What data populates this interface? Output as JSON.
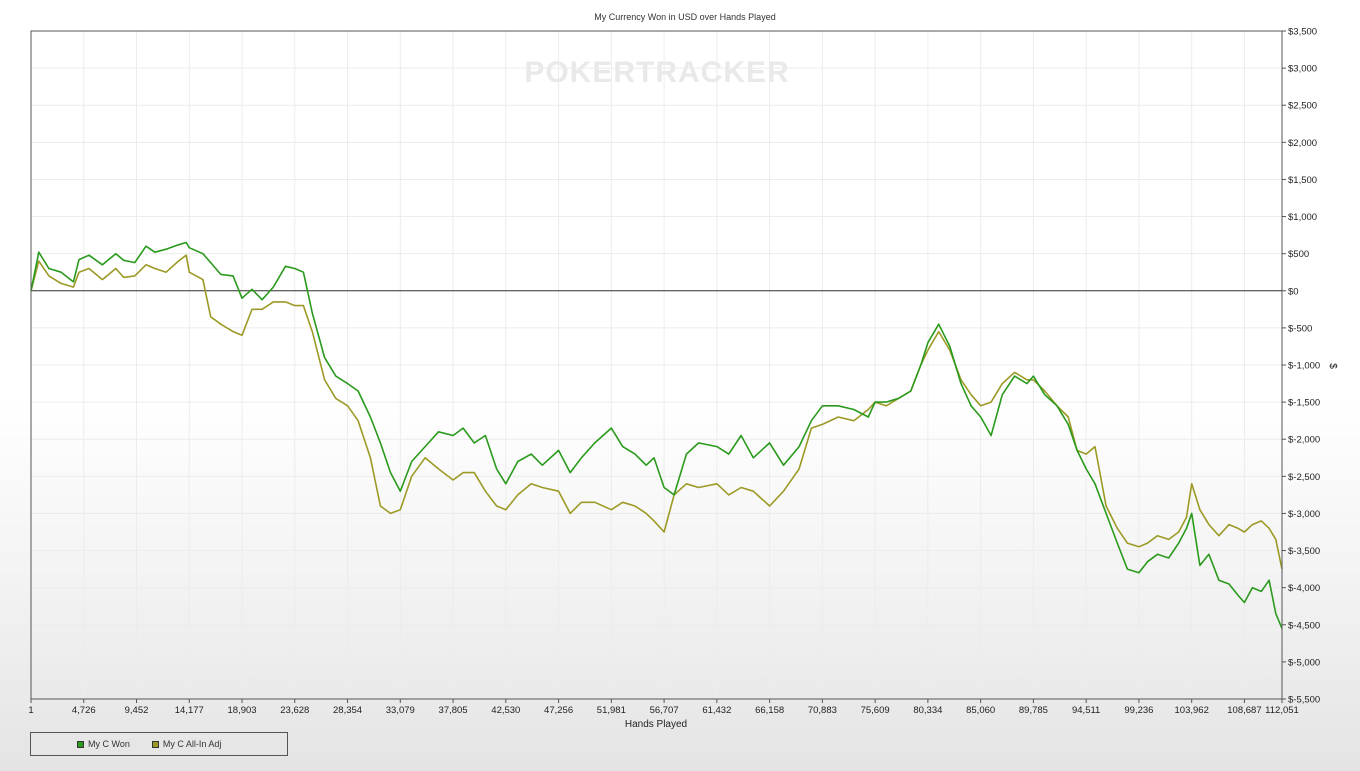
{
  "chart_data": {
    "type": "line",
    "title": "My Currency Won in USD over Hands Played",
    "watermark": "POKERTRACKER",
    "xlabel": "Hands Played",
    "ylabel": "$",
    "xlim": [
      1,
      112051
    ],
    "ylim": [
      -5500,
      3500
    ],
    "x_ticks": [
      1,
      4726,
      9452,
      14177,
      18903,
      23628,
      28354,
      33079,
      37805,
      42530,
      47256,
      51981,
      56707,
      61432,
      66158,
      70883,
      75609,
      80334,
      85060,
      89785,
      94511,
      99236,
      103962,
      108687,
      112051
    ],
    "x_tick_labels": [
      "1",
      "4,726",
      "9,452",
      "14,177",
      "18,903",
      "23,628",
      "28,354",
      "33,079",
      "37,805",
      "42,530",
      "47,256",
      "51,981",
      "56,707",
      "61,432",
      "66,158",
      "70,883",
      "75,609",
      "80,334",
      "85,060",
      "89,785",
      "94,511",
      "99,236",
      "103,962",
      "108,687",
      "112,051"
    ],
    "y_ticks": [
      3500,
      3000,
      2500,
      2000,
      1500,
      1000,
      500,
      0,
      -500,
      -1000,
      -1500,
      -2000,
      -2500,
      -3000,
      -3500,
      -4000,
      -4500,
      -5000,
      -5500
    ],
    "y_tick_labels": [
      "$3,500",
      "$3,000",
      "$2,500",
      "$2,000",
      "$1,500",
      "$1,000",
      "$500",
      "$0",
      "$-500",
      "$-1,000",
      "$-1,500",
      "$-2,000",
      "$-2,500",
      "$-3,000",
      "$-3,500",
      "$-4,000",
      "$-4,500",
      "$-5,000",
      "$-5,500"
    ],
    "grid": true,
    "legend_position": "bottom-left",
    "series": [
      {
        "name": "My C Won",
        "color": "#2a9a1c",
        "x": [
          1,
          700,
          1600,
          2700,
          3800,
          4300,
          5200,
          6400,
          7600,
          8300,
          9300,
          10300,
          11100,
          12100,
          13200,
          13900,
          14177,
          15400,
          16100,
          17000,
          18100,
          18903,
          19800,
          20700,
          21700,
          22800,
          23628,
          24400,
          25200,
          26300,
          27300,
          28354,
          29300,
          30400,
          31300,
          32200,
          33079,
          34100,
          35300,
          36500,
          37805,
          38700,
          39700,
          40700,
          41700,
          42530,
          43600,
          44800,
          45800,
          47256,
          48300,
          49300,
          50500,
          51981,
          53000,
          54100,
          55100,
          55800,
          56707,
          57600,
          58700,
          59800,
          61432,
          62500,
          63600,
          64700,
          66158,
          67400,
          68800,
          69900,
          70883,
          72300,
          73700,
          75000,
          75609,
          76600,
          77700,
          78800,
          79700,
          80334,
          81300,
          82300,
          83300,
          84200,
          85060,
          86000,
          87000,
          88100,
          89200,
          89785,
          90800,
          91900,
          92900,
          93700,
          94511,
          95300,
          96300,
          97300,
          98200,
          99236,
          100000,
          100900,
          101900,
          102800,
          103500,
          103962,
          104700,
          105500,
          106400,
          107300,
          108100,
          108687,
          109400,
          110200,
          110900,
          111500,
          112051
        ],
        "values": [
          0,
          520,
          300,
          250,
          120,
          420,
          480,
          350,
          500,
          410,
          380,
          600,
          520,
          560,
          620,
          650,
          580,
          500,
          380,
          220,
          200,
          -100,
          20,
          -120,
          50,
          330,
          300,
          250,
          -300,
          -900,
          -1150,
          -1250,
          -1350,
          -1700,
          -2050,
          -2450,
          -2700,
          -2300,
          -2100,
          -1900,
          -1950,
          -1850,
          -2050,
          -1950,
          -2400,
          -2600,
          -2300,
          -2200,
          -2350,
          -2150,
          -2450,
          -2250,
          -2050,
          -1850,
          -2100,
          -2200,
          -2350,
          -2250,
          -2650,
          -2750,
          -2200,
          -2050,
          -2100,
          -2200,
          -1950,
          -2250,
          -2050,
          -2350,
          -2100,
          -1750,
          -1550,
          -1550,
          -1600,
          -1700,
          -1500,
          -1500,
          -1450,
          -1350,
          -1000,
          -700,
          -450,
          -750,
          -1250,
          -1550,
          -1700,
          -1950,
          -1400,
          -1150,
          -1250,
          -1150,
          -1400,
          -1550,
          -1800,
          -2150,
          -2400,
          -2600,
          -3000,
          -3400,
          -3750,
          -3800,
          -3650,
          -3550,
          -3600,
          -3400,
          -3200,
          -3000,
          -3700,
          -3550,
          -3900,
          -3950,
          -4100,
          -4200,
          -4000,
          -4050,
          -3900,
          -4350,
          -4550
        ]
      },
      {
        "name": "My C All-In Adj",
        "color": "#9c9a26",
        "x": [
          1,
          700,
          1600,
          2700,
          3800,
          4300,
          5200,
          6400,
          7600,
          8300,
          9300,
          10300,
          11100,
          12100,
          13200,
          13900,
          14177,
          15400,
          16100,
          17000,
          18100,
          18903,
          19800,
          20700,
          21700,
          22800,
          23628,
          24400,
          25200,
          26300,
          27300,
          28354,
          29300,
          30400,
          31300,
          32200,
          33079,
          34100,
          35300,
          36500,
          37805,
          38700,
          39700,
          40700,
          41700,
          42530,
          43600,
          44800,
          45800,
          47256,
          48300,
          49300,
          50500,
          51981,
          53000,
          54100,
          55100,
          55800,
          56707,
          57600,
          58700,
          59800,
          61432,
          62500,
          63600,
          64700,
          66158,
          67400,
          68800,
          69900,
          70883,
          72300,
          73700,
          75000,
          75609,
          76600,
          77700,
          78800,
          79700,
          80334,
          81300,
          82300,
          83300,
          84200,
          85060,
          86000,
          87000,
          88100,
          89200,
          89785,
          90800,
          91900,
          92900,
          93700,
          94511,
          95300,
          96300,
          97300,
          98200,
          99236,
          100000,
          100900,
          101900,
          102800,
          103500,
          103962,
          104700,
          105500,
          106400,
          107300,
          108100,
          108687,
          109400,
          110200,
          110900,
          111500,
          112051
        ],
        "values": [
          0,
          400,
          200,
          100,
          50,
          250,
          300,
          150,
          300,
          180,
          200,
          350,
          300,
          250,
          400,
          480,
          250,
          150,
          -350,
          -450,
          -550,
          -600,
          -250,
          -250,
          -150,
          -150,
          -200,
          -200,
          -550,
          -1200,
          -1450,
          -1550,
          -1750,
          -2250,
          -2900,
          -3000,
          -2950,
          -2500,
          -2250,
          -2400,
          -2550,
          -2450,
          -2450,
          -2700,
          -2900,
          -2950,
          -2750,
          -2600,
          -2650,
          -2700,
          -3000,
          -2850,
          -2850,
          -2950,
          -2850,
          -2900,
          -3000,
          -3100,
          -3250,
          -2750,
          -2600,
          -2650,
          -2600,
          -2750,
          -2650,
          -2700,
          -2900,
          -2700,
          -2400,
          -1850,
          -1800,
          -1700,
          -1750,
          -1600,
          -1500,
          -1550,
          -1450,
          -1350,
          -1000,
          -800,
          -550,
          -800,
          -1200,
          -1400,
          -1550,
          -1500,
          -1250,
          -1100,
          -1200,
          -1200,
          -1350,
          -1550,
          -1700,
          -2150,
          -2200,
          -2100,
          -2900,
          -3200,
          -3400,
          -3450,
          -3400,
          -3300,
          -3350,
          -3250,
          -3050,
          -2600,
          -2950,
          -3150,
          -3300,
          -3150,
          -3200,
          -3250,
          -3150,
          -3100,
          -3200,
          -3350,
          -3750
        ]
      }
    ]
  }
}
